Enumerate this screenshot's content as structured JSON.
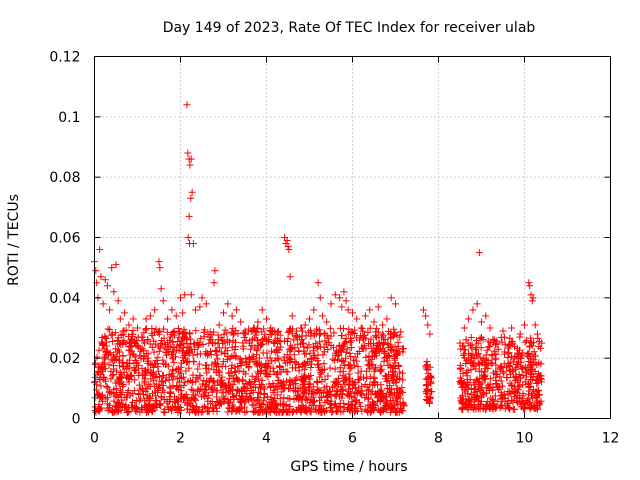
{
  "chart_data": {
    "type": "scatter",
    "title": "Day 149 of 2023, Rate Of TEC Index for receiver ulab",
    "xlabel": "GPS time / hours",
    "ylabel": "ROTI / TECUs",
    "xlim": [
      0,
      12
    ],
    "ylim": [
      0,
      0.12
    ],
    "xticks": [
      0,
      2,
      4,
      6,
      8,
      10,
      12
    ],
    "yticks": [
      0,
      0.02,
      0.04,
      0.06,
      0.08,
      0.1,
      0.12
    ],
    "grid": true,
    "marker": "plus",
    "color": "#ff0000",
    "dense_segments": [
      {
        "x_start": 0.0,
        "x_end": 7.2,
        "y_min": 0.002,
        "y_max": 0.03,
        "typical_upper": 0.03
      },
      {
        "x_start": 7.7,
        "x_end": 7.85,
        "y_min": 0.005,
        "y_max": 0.02,
        "typical_upper": 0.02
      },
      {
        "x_start": 8.5,
        "x_end": 10.4,
        "y_min": 0.003,
        "y_max": 0.027,
        "typical_upper": 0.027
      }
    ],
    "points": [
      [
        0.0,
        0.052
      ],
      [
        0.03,
        0.049
      ],
      [
        0.05,
        0.045
      ],
      [
        0.08,
        0.04
      ],
      [
        0.12,
        0.056
      ],
      [
        0.15,
        0.047
      ],
      [
        0.2,
        0.038
      ],
      [
        0.25,
        0.046
      ],
      [
        0.3,
        0.044
      ],
      [
        0.35,
        0.036
      ],
      [
        0.4,
        0.05
      ],
      [
        0.45,
        0.042
      ],
      [
        0.5,
        0.051
      ],
      [
        0.55,
        0.039
      ],
      [
        0.6,
        0.033
      ],
      [
        0.7,
        0.035
      ],
      [
        0.8,
        0.031
      ],
      [
        0.9,
        0.033
      ],
      [
        1.0,
        0.03
      ],
      [
        1.1,
        0.027
      ],
      [
        1.2,
        0.033
      ],
      [
        1.3,
        0.034
      ],
      [
        1.4,
        0.036
      ],
      [
        1.5,
        0.052
      ],
      [
        1.52,
        0.05
      ],
      [
        1.55,
        0.043
      ],
      [
        1.6,
        0.039
      ],
      [
        1.7,
        0.033
      ],
      [
        1.8,
        0.036
      ],
      [
        1.9,
        0.034
      ],
      [
        2.0,
        0.04
      ],
      [
        2.05,
        0.035
      ],
      [
        2.1,
        0.041
      ],
      [
        2.15,
        0.104
      ],
      [
        2.17,
        0.088
      ],
      [
        2.2,
        0.086
      ],
      [
        2.22,
        0.084
      ],
      [
        2.25,
        0.086
      ],
      [
        2.27,
        0.075
      ],
      [
        2.24,
        0.073
      ],
      [
        2.2,
        0.067
      ],
      [
        2.18,
        0.06
      ],
      [
        2.21,
        0.058
      ],
      [
        2.3,
        0.058
      ],
      [
        2.25,
        0.041
      ],
      [
        2.35,
        0.036
      ],
      [
        2.45,
        0.037
      ],
      [
        2.5,
        0.04
      ],
      [
        2.6,
        0.038
      ],
      [
        2.8,
        0.049
      ],
      [
        2.78,
        0.045
      ],
      [
        2.9,
        0.031
      ],
      [
        3.0,
        0.035
      ],
      [
        3.1,
        0.038
      ],
      [
        3.2,
        0.034
      ],
      [
        3.3,
        0.036
      ],
      [
        3.4,
        0.032
      ],
      [
        3.5,
        0.029
      ],
      [
        3.6,
        0.025
      ],
      [
        3.7,
        0.03
      ],
      [
        3.8,
        0.032
      ],
      [
        3.9,
        0.036
      ],
      [
        4.0,
        0.033
      ],
      [
        4.1,
        0.03
      ],
      [
        4.2,
        0.028
      ],
      [
        4.42,
        0.06
      ],
      [
        4.45,
        0.058
      ],
      [
        4.48,
        0.059
      ],
      [
        4.5,
        0.057
      ],
      [
        4.52,
        0.056
      ],
      [
        4.55,
        0.047
      ],
      [
        4.6,
        0.034
      ],
      [
        4.7,
        0.029
      ],
      [
        4.8,
        0.03
      ],
      [
        4.9,
        0.031
      ],
      [
        5.0,
        0.033
      ],
      [
        5.1,
        0.036
      ],
      [
        5.2,
        0.045
      ],
      [
        5.25,
        0.04
      ],
      [
        5.3,
        0.034
      ],
      [
        5.4,
        0.032
      ],
      [
        5.5,
        0.038
      ],
      [
        5.6,
        0.041
      ],
      [
        5.7,
        0.04
      ],
      [
        5.75,
        0.037
      ],
      [
        5.8,
        0.042
      ],
      [
        5.85,
        0.039
      ],
      [
        5.9,
        0.036
      ],
      [
        6.0,
        0.035
      ],
      [
        6.1,
        0.033
      ],
      [
        6.2,
        0.03
      ],
      [
        6.3,
        0.034
      ],
      [
        6.4,
        0.036
      ],
      [
        6.5,
        0.032
      ],
      [
        6.6,
        0.037
      ],
      [
        6.7,
        0.031
      ],
      [
        6.8,
        0.033
      ],
      [
        6.9,
        0.04
      ],
      [
        7.0,
        0.038
      ],
      [
        7.1,
        0.027
      ],
      [
        7.65,
        0.036
      ],
      [
        7.7,
        0.034
      ],
      [
        7.75,
        0.031
      ],
      [
        7.8,
        0.028
      ],
      [
        8.5,
        0.025
      ],
      [
        8.6,
        0.03
      ],
      [
        8.7,
        0.033
      ],
      [
        8.8,
        0.036
      ],
      [
        8.9,
        0.038
      ],
      [
        8.95,
        0.055
      ],
      [
        9.0,
        0.032
      ],
      [
        9.1,
        0.034
      ],
      [
        9.2,
        0.03
      ],
      [
        9.3,
        0.026
      ],
      [
        9.5,
        0.029
      ],
      [
        9.7,
        0.03
      ],
      [
        9.9,
        0.028
      ],
      [
        10.0,
        0.031
      ],
      [
        10.1,
        0.045
      ],
      [
        10.12,
        0.044
      ],
      [
        10.15,
        0.041
      ],
      [
        10.18,
        0.039
      ],
      [
        10.2,
        0.04
      ],
      [
        10.25,
        0.031
      ],
      [
        10.3,
        0.028
      ]
    ]
  }
}
